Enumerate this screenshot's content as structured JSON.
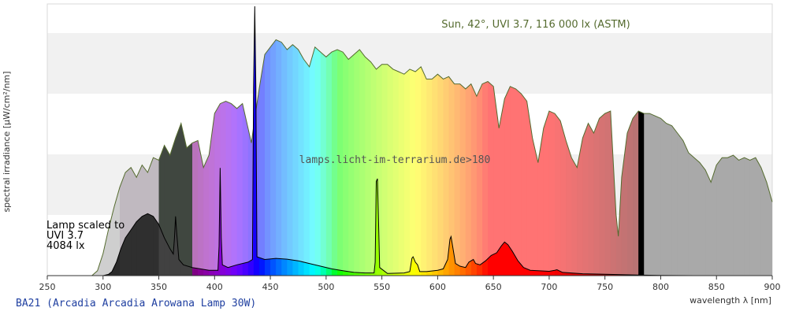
{
  "chart_data": {
    "type": "area",
    "title": "BA21 (Arcadia Arcadia Arowana Lamp 30W)",
    "xlabel": "wavelength λ [nm]",
    "ylabel": "spectral irradiance [µW/cm²/nm]",
    "xlim": [
      250,
      900
    ],
    "xticks": [
      250,
      300,
      350,
      400,
      450,
      500,
      550,
      600,
      650,
      700,
      750,
      800,
      850,
      900
    ],
    "grid": "horizontal alternating bands",
    "watermark": "lamps.licht-im-terrarium.de>180",
    "series": [
      {
        "name": "Sun, 42°, UVI 3.7, 116 000 lx (ASTM)",
        "color": "#556b2f",
        "relative": true,
        "points": [
          [
            290,
            0
          ],
          [
            295,
            0.02
          ],
          [
            300,
            0.09
          ],
          [
            305,
            0.19
          ],
          [
            310,
            0.28
          ],
          [
            315,
            0.36
          ],
          [
            320,
            0.42
          ],
          [
            325,
            0.44
          ],
          [
            330,
            0.4
          ],
          [
            335,
            0.45
          ],
          [
            340,
            0.42
          ],
          [
            345,
            0.48
          ],
          [
            350,
            0.47
          ],
          [
            355,
            0.53
          ],
          [
            360,
            0.49
          ],
          [
            365,
            0.56
          ],
          [
            370,
            0.62
          ],
          [
            375,
            0.52
          ],
          [
            380,
            0.54
          ],
          [
            385,
            0.55
          ],
          [
            390,
            0.44
          ],
          [
            395,
            0.49
          ],
          [
            400,
            0.66
          ],
          [
            405,
            0.7
          ],
          [
            410,
            0.71
          ],
          [
            415,
            0.7
          ],
          [
            420,
            0.68
          ],
          [
            425,
            0.7
          ],
          [
            430,
            0.6
          ],
          [
            433,
            0.54
          ],
          [
            436,
            0.64
          ],
          [
            440,
            0.76
          ],
          [
            445,
            0.9
          ],
          [
            450,
            0.93
          ],
          [
            455,
            0.96
          ],
          [
            460,
            0.95
          ],
          [
            465,
            0.92
          ],
          [
            470,
            0.94
          ],
          [
            475,
            0.92
          ],
          [
            480,
            0.88
          ],
          [
            485,
            0.85
          ],
          [
            490,
            0.93
          ],
          [
            495,
            0.91
          ],
          [
            500,
            0.89
          ],
          [
            505,
            0.91
          ],
          [
            510,
            0.92
          ],
          [
            515,
            0.91
          ],
          [
            520,
            0.88
          ],
          [
            525,
            0.9
          ],
          [
            530,
            0.92
          ],
          [
            535,
            0.89
          ],
          [
            540,
            0.87
          ],
          [
            545,
            0.84
          ],
          [
            550,
            0.86
          ],
          [
            555,
            0.86
          ],
          [
            560,
            0.84
          ],
          [
            565,
            0.83
          ],
          [
            570,
            0.82
          ],
          [
            575,
            0.84
          ],
          [
            580,
            0.83
          ],
          [
            585,
            0.85
          ],
          [
            590,
            0.8
          ],
          [
            595,
            0.8
          ],
          [
            600,
            0.82
          ],
          [
            605,
            0.8
          ],
          [
            610,
            0.81
          ],
          [
            615,
            0.78
          ],
          [
            620,
            0.78
          ],
          [
            625,
            0.76
          ],
          [
            630,
            0.78
          ],
          [
            635,
            0.73
          ],
          [
            640,
            0.78
          ],
          [
            645,
            0.79
          ],
          [
            650,
            0.77
          ],
          [
            655,
            0.6
          ],
          [
            660,
            0.72
          ],
          [
            665,
            0.77
          ],
          [
            670,
            0.76
          ],
          [
            675,
            0.74
          ],
          [
            680,
            0.71
          ],
          [
            685,
            0.56
          ],
          [
            690,
            0.46
          ],
          [
            695,
            0.6
          ],
          [
            700,
            0.67
          ],
          [
            705,
            0.66
          ],
          [
            710,
            0.63
          ],
          [
            715,
            0.55
          ],
          [
            720,
            0.48
          ],
          [
            725,
            0.44
          ],
          [
            730,
            0.56
          ],
          [
            735,
            0.62
          ],
          [
            740,
            0.58
          ],
          [
            745,
            0.64
          ],
          [
            750,
            0.66
          ],
          [
            755,
            0.67
          ],
          [
            760,
            0.25
          ],
          [
            762,
            0.16
          ],
          [
            765,
            0.4
          ],
          [
            770,
            0.58
          ],
          [
            775,
            0.64
          ],
          [
            780,
            0.67
          ],
          [
            785,
            0.66
          ],
          [
            790,
            0.66
          ],
          [
            795,
            0.65
          ],
          [
            800,
            0.64
          ],
          [
            805,
            0.62
          ],
          [
            810,
            0.61
          ],
          [
            815,
            0.58
          ],
          [
            820,
            0.55
          ],
          [
            825,
            0.5
          ],
          [
            830,
            0.48
          ],
          [
            835,
            0.46
          ],
          [
            840,
            0.43
          ],
          [
            845,
            0.38
          ],
          [
            850,
            0.45
          ],
          [
            855,
            0.48
          ],
          [
            860,
            0.48
          ],
          [
            865,
            0.49
          ],
          [
            870,
            0.47
          ],
          [
            875,
            0.48
          ],
          [
            880,
            0.47
          ],
          [
            885,
            0.48
          ],
          [
            890,
            0.44
          ],
          [
            895,
            0.38
          ],
          [
            900,
            0.3
          ]
        ]
      },
      {
        "name": "BA21 (Arcadia Arcadia Arowana Lamp 30W)",
        "color": "#000000",
        "relative": true,
        "points": [
          [
            300,
            0
          ],
          [
            305,
            0.005
          ],
          [
            308,
            0.015
          ],
          [
            312,
            0.05
          ],
          [
            316,
            0.1
          ],
          [
            320,
            0.14
          ],
          [
            325,
            0.17
          ],
          [
            330,
            0.2
          ],
          [
            335,
            0.22
          ],
          [
            340,
            0.23
          ],
          [
            345,
            0.22
          ],
          [
            350,
            0.19
          ],
          [
            355,
            0.14
          ],
          [
            360,
            0.1
          ],
          [
            363,
            0.08
          ],
          [
            364,
            0.14
          ],
          [
            365,
            0.22
          ],
          [
            366,
            0.16
          ],
          [
            368,
            0.06
          ],
          [
            372,
            0.04
          ],
          [
            380,
            0.03
          ],
          [
            395,
            0.02
          ],
          [
            403,
            0.02
          ],
          [
            404,
            0.11
          ],
          [
            405,
            0.4
          ],
          [
            406,
            0.14
          ],
          [
            407,
            0.04
          ],
          [
            412,
            0.03
          ],
          [
            420,
            0.04
          ],
          [
            430,
            0.05
          ],
          [
            434,
            0.06
          ],
          [
            435,
            0.7
          ],
          [
            436,
            1.0
          ],
          [
            437,
            0.7
          ],
          [
            438,
            0.07
          ],
          [
            445,
            0.06
          ],
          [
            455,
            0.064
          ],
          [
            465,
            0.061
          ],
          [
            475,
            0.055
          ],
          [
            485,
            0.045
          ],
          [
            495,
            0.035
          ],
          [
            505,
            0.025
          ],
          [
            515,
            0.018
          ],
          [
            525,
            0.012
          ],
          [
            535,
            0.01
          ],
          [
            543,
            0.01
          ],
          [
            544,
            0.05
          ],
          [
            545,
            0.35
          ],
          [
            546,
            0.36
          ],
          [
            547,
            0.2
          ],
          [
            548,
            0.03
          ],
          [
            555,
            0.008
          ],
          [
            570,
            0.01
          ],
          [
            575,
            0.015
          ],
          [
            577,
            0.065
          ],
          [
            578,
            0.07
          ],
          [
            580,
            0.05
          ],
          [
            582,
            0.04
          ],
          [
            584,
            0.015
          ],
          [
            590,
            0.015
          ],
          [
            600,
            0.02
          ],
          [
            605,
            0.025
          ],
          [
            609,
            0.06
          ],
          [
            611,
            0.135
          ],
          [
            612,
            0.145
          ],
          [
            614,
            0.095
          ],
          [
            616,
            0.045
          ],
          [
            620,
            0.035
          ],
          [
            625,
            0.03
          ],
          [
            628,
            0.05
          ],
          [
            632,
            0.06
          ],
          [
            634,
            0.045
          ],
          [
            638,
            0.04
          ],
          [
            643,
            0.055
          ],
          [
            648,
            0.075
          ],
          [
            653,
            0.085
          ],
          [
            657,
            0.11
          ],
          [
            660,
            0.125
          ],
          [
            663,
            0.115
          ],
          [
            667,
            0.09
          ],
          [
            672,
            0.055
          ],
          [
            677,
            0.03
          ],
          [
            683,
            0.02
          ],
          [
            690,
            0.018
          ],
          [
            700,
            0.016
          ],
          [
            705,
            0.02
          ],
          [
            707,
            0.022
          ],
          [
            712,
            0.012
          ],
          [
            730,
            0.007
          ],
          [
            750,
            0.005
          ],
          [
            780,
            0.002
          ],
          [
            800,
            0.001
          ],
          [
            830,
            0
          ]
        ]
      }
    ],
    "legend": "top-right",
    "annotation": {
      "line1": "Lamp scaled to",
      "line2": "UVI 3.7",
      "line3": "4084 lx"
    }
  }
}
